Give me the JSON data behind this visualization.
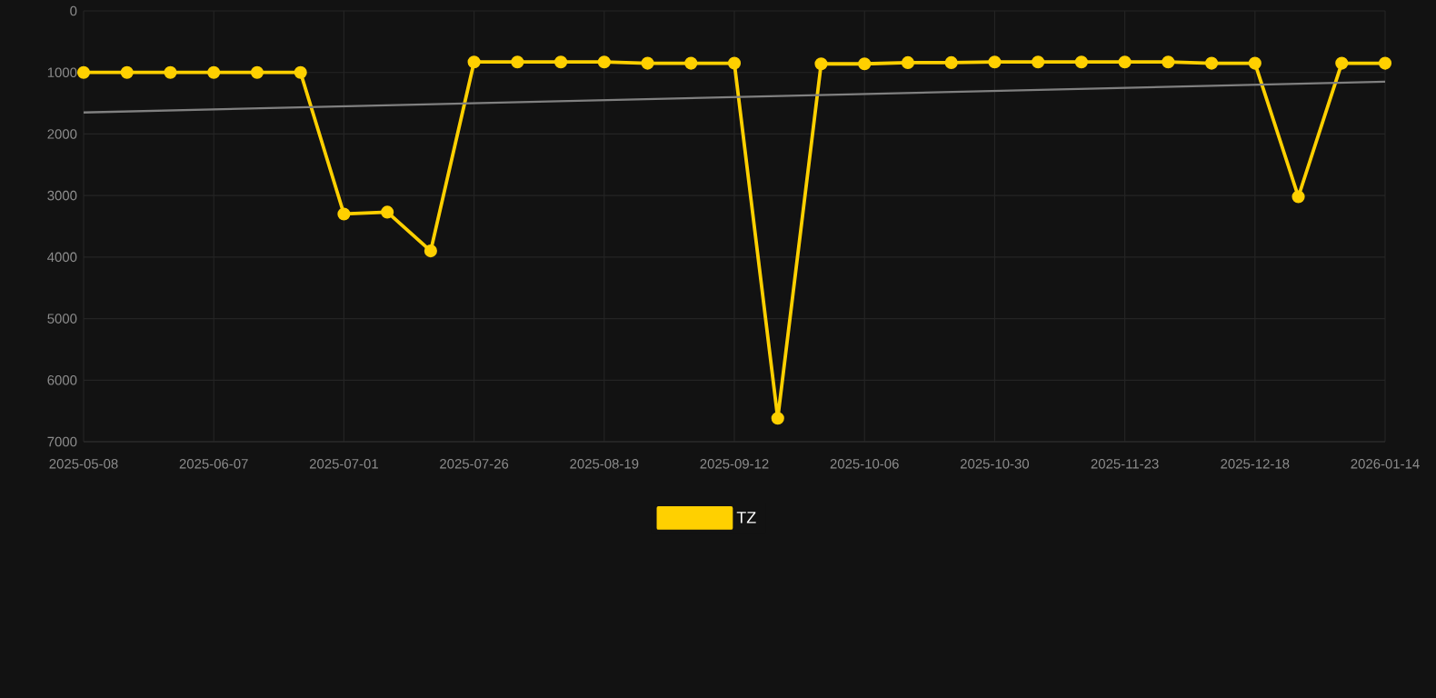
{
  "chart_data": {
    "type": "line",
    "categories": [
      "2025-05-08",
      null,
      null,
      "2025-06-07",
      null,
      null,
      "2025-07-01",
      null,
      null,
      "2025-07-26",
      null,
      null,
      "2025-08-19",
      null,
      null,
      "2025-09-12",
      null,
      null,
      "2025-10-06",
      null,
      null,
      "2025-10-30",
      null,
      null,
      "2025-11-23",
      null,
      null,
      "2025-12-18",
      null,
      null,
      "2026-01-14"
    ],
    "series": [
      {
        "name": "TZ",
        "color": "#ffd000",
        "marker": "circle",
        "values": [
          1000,
          1000,
          1000,
          1000,
          1000,
          1000,
          3300,
          3270,
          3900,
          830,
          830,
          830,
          830,
          850,
          850,
          850,
          6620,
          860,
          860,
          840,
          840,
          830,
          830,
          830,
          830,
          830,
          850,
          850,
          3020,
          850,
          850
        ]
      },
      {
        "color": "#808080",
        "marker": "none",
        "values": [
          1650,
          null,
          null,
          null,
          null,
          null,
          null,
          null,
          null,
          null,
          null,
          null,
          null,
          null,
          null,
          null,
          null,
          null,
          null,
          null,
          null,
          null,
          null,
          null,
          null,
          null,
          null,
          null,
          null,
          null,
          1150
        ]
      }
    ],
    "ylim": [
      7000,
      0
    ],
    "yticks": [
      0,
      1000,
      2000,
      3000,
      4000,
      5000,
      6000,
      7000
    ],
    "grid": true,
    "legend": "bottom"
  }
}
